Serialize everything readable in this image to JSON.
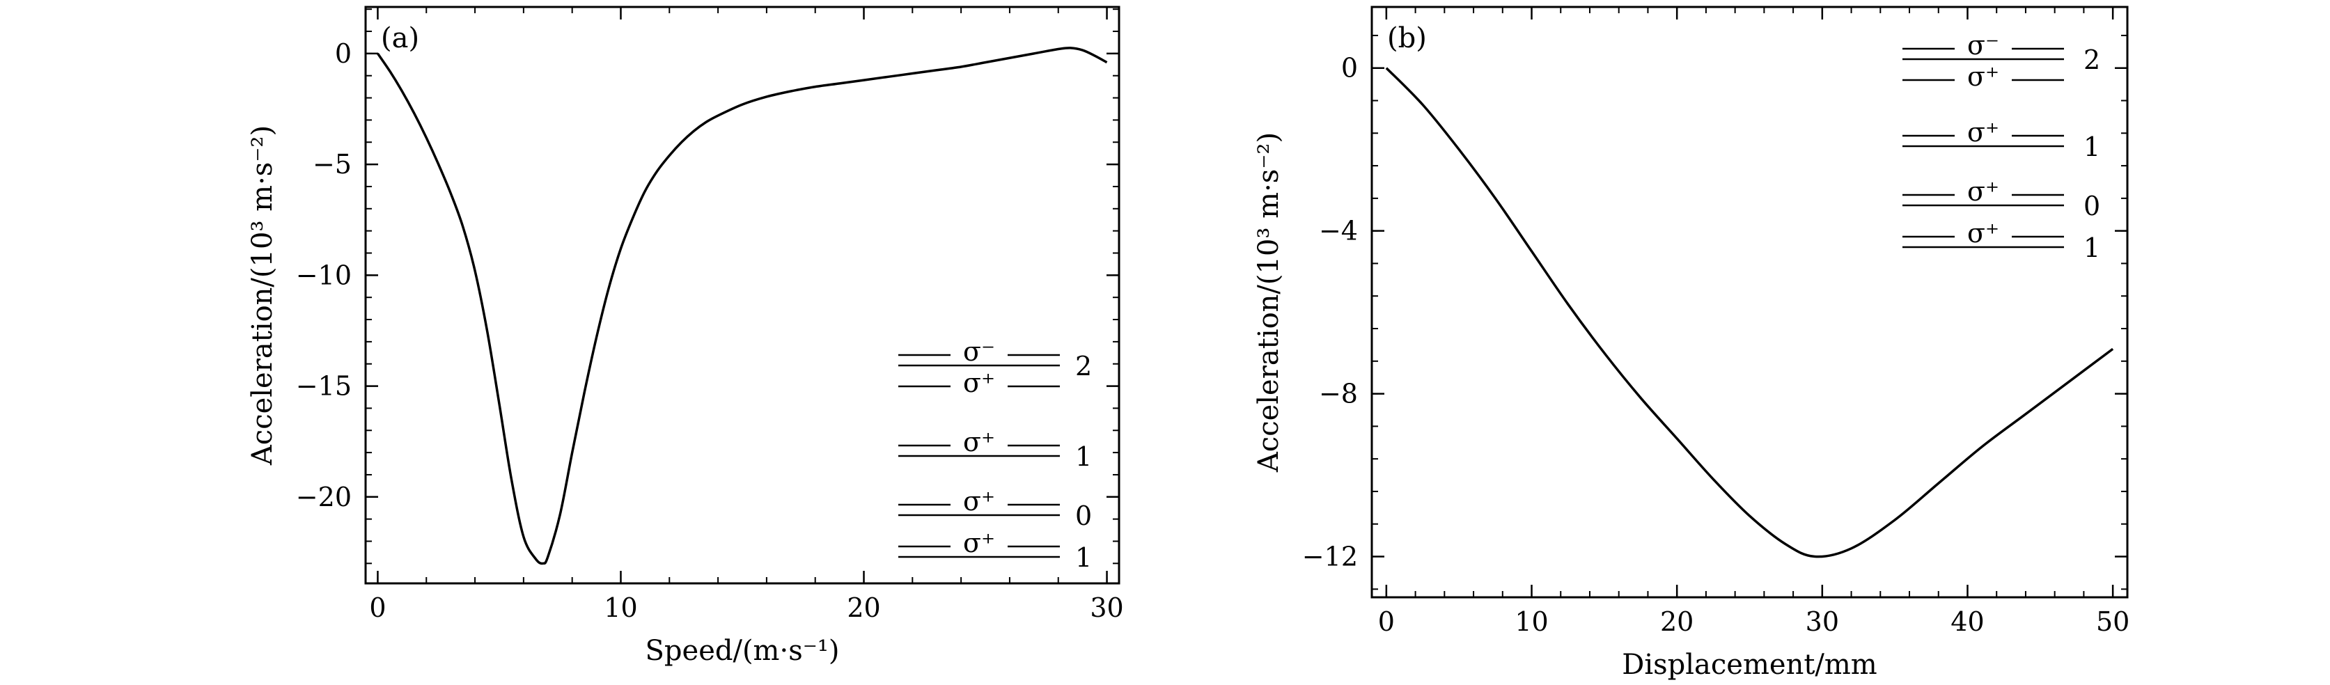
{
  "chart_data": [
    {
      "type": "line",
      "panel_label": "(a)",
      "xlabel": "Speed/(m·s⁻¹)",
      "ylabel": "Acceleration/(10³ m·s⁻²)",
      "xlim": [
        -0.5,
        30.5
      ],
      "ylim": [
        -23.9,
        2.1
      ],
      "xticks": [
        0,
        10,
        20,
        30
      ],
      "xtick_labels": [
        "0",
        "10",
        "20",
        "30"
      ],
      "yticks": [
        0,
        -5,
        -10,
        -15,
        -20
      ],
      "ytick_labels": [
        "0",
        "−5",
        "−10",
        "−15",
        "−20"
      ],
      "grid": false,
      "series": [
        {
          "x": [
            0,
            0.5,
            1,
            1.5,
            2,
            2.5,
            3,
            3.5,
            4,
            4.5,
            5,
            5.5,
            6,
            6.5,
            6.8,
            7,
            7.5,
            8,
            8.5,
            9,
            9.5,
            10,
            10.5,
            11,
            11.5,
            12,
            12.5,
            13,
            13.5,
            14,
            15,
            16,
            17,
            18,
            19,
            20,
            21,
            22,
            23,
            24,
            25,
            26,
            27,
            28,
            28.5,
            29,
            29.5,
            30
          ],
          "y": [
            0,
            -0.8,
            -1.7,
            -2.7,
            -3.8,
            -5.0,
            -6.3,
            -7.8,
            -9.8,
            -12.5,
            -15.8,
            -19.2,
            -21.8,
            -22.8,
            -23.0,
            -22.7,
            -20.8,
            -18.0,
            -15.3,
            -12.8,
            -10.6,
            -8.8,
            -7.4,
            -6.2,
            -5.3,
            -4.6,
            -4.0,
            -3.5,
            -3.1,
            -2.8,
            -2.3,
            -1.95,
            -1.7,
            -1.5,
            -1.35,
            -1.2,
            -1.05,
            -0.9,
            -0.75,
            -0.6,
            -0.4,
            -0.2,
            0.0,
            0.2,
            0.25,
            0.15,
            -0.1,
            -0.4
          ]
        }
      ],
      "legend_levels": [
        {
          "label": "σ⁻",
          "number": "2"
        },
        {
          "label": "σ⁺",
          "number": ""
        },
        {
          "label": "σ⁺",
          "number": "1"
        },
        {
          "label": "σ⁺",
          "number": "0"
        },
        {
          "label": "σ⁺",
          "number": "1"
        }
      ]
    },
    {
      "type": "line",
      "panel_label": "(b)",
      "xlabel": "Displacement/mm",
      "ylabel": "Acceleration/(10³ m·s⁻²)",
      "xlim": [
        -1,
        51
      ],
      "ylim": [
        -13,
        1.5
      ],
      "xticks": [
        0,
        10,
        20,
        30,
        40,
        50
      ],
      "xtick_labels": [
        "0",
        "10",
        "20",
        "30",
        "40",
        "50"
      ],
      "yticks": [
        0,
        -4,
        -8,
        -12
      ],
      "ytick_labels": [
        "0",
        "−4",
        "−8",
        "−12"
      ],
      "grid": false,
      "series": [
        {
          "x": [
            0,
            2.5,
            5,
            7.5,
            10,
            12.5,
            15,
            17.5,
            20,
            22.5,
            25,
            27.5,
            29.5,
            32,
            35,
            38,
            41,
            44,
            47,
            50
          ],
          "y": [
            0,
            -0.9,
            -2.0,
            -3.2,
            -4.5,
            -5.8,
            -7.0,
            -8.1,
            -9.1,
            -10.1,
            -11.0,
            -11.7,
            -12.0,
            -11.8,
            -11.1,
            -10.2,
            -9.3,
            -8.5,
            -7.7,
            -6.9
          ]
        }
      ],
      "legend_levels": [
        {
          "label": "σ⁻",
          "number": "2"
        },
        {
          "label": "σ⁺",
          "number": ""
        },
        {
          "label": "σ⁺",
          "number": "1"
        },
        {
          "label": "σ⁺",
          "number": "0"
        },
        {
          "label": "σ⁺",
          "number": "1"
        }
      ]
    }
  ]
}
